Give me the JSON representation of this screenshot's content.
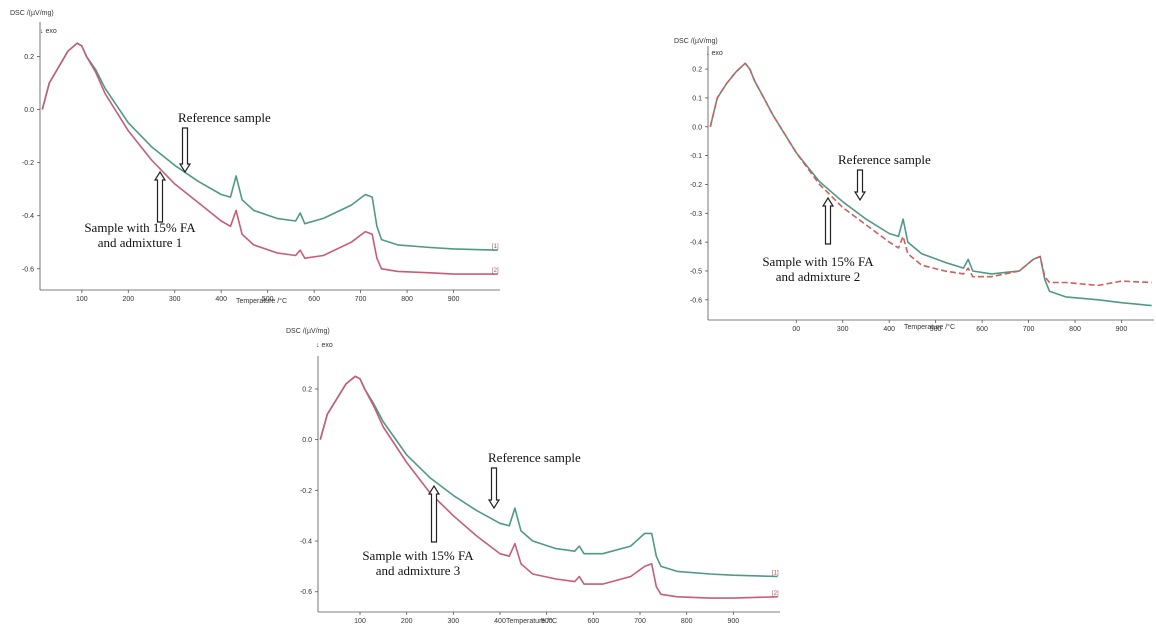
{
  "chart_data": [
    {
      "type": "line",
      "ylabel": "DSC /(µV/mg)",
      "exo_label": "↓ exo",
      "xlabel": "Temperature /°C",
      "x_ticks": [
        "100",
        "200",
        "300",
        "400",
        "500",
        "600",
        "700",
        "800",
        "900"
      ],
      "y_ticks": [
        "0.2",
        "0.0",
        "-0.2",
        "-0.4",
        "-0.6"
      ],
      "xlim": [
        10,
        1000
      ],
      "ylim": [
        -0.68,
        0.33
      ],
      "annotations": {
        "reference": "Reference sample",
        "sample_line1": "Sample with 15% FA",
        "sample_line2": "and admixture 1"
      },
      "end_labels": [
        "[1]",
        "[2]"
      ],
      "series": [
        {
          "color": "#4f9a86",
          "dash": false,
          "x": [
            15,
            30,
            50,
            70,
            90,
            100,
            110,
            130,
            150,
            200,
            250,
            300,
            350,
            400,
            420,
            432,
            445,
            470,
            520,
            560,
            570,
            580,
            620,
            680,
            710,
            725,
            735,
            745,
            780,
            850,
            900,
            995
          ],
          "y": [
            0.0,
            0.1,
            0.16,
            0.22,
            0.25,
            0.24,
            0.2,
            0.15,
            0.08,
            -0.05,
            -0.14,
            -0.21,
            -0.27,
            -0.32,
            -0.33,
            -0.25,
            -0.34,
            -0.38,
            -0.41,
            -0.42,
            -0.39,
            -0.43,
            -0.41,
            -0.36,
            -0.32,
            -0.33,
            -0.44,
            -0.49,
            -0.51,
            -0.52,
            -0.525,
            -0.53
          ]
        },
        {
          "color": "#c75d76",
          "dash": false,
          "x": [
            15,
            30,
            50,
            70,
            90,
            100,
            110,
            130,
            150,
            200,
            250,
            300,
            350,
            400,
            420,
            432,
            445,
            470,
            520,
            560,
            570,
            580,
            620,
            680,
            710,
            725,
            735,
            745,
            780,
            850,
            900,
            995
          ],
          "y": [
            0.0,
            0.1,
            0.16,
            0.22,
            0.25,
            0.24,
            0.2,
            0.14,
            0.06,
            -0.08,
            -0.19,
            -0.28,
            -0.35,
            -0.42,
            -0.44,
            -0.38,
            -0.47,
            -0.51,
            -0.54,
            -0.55,
            -0.53,
            -0.56,
            -0.55,
            -0.5,
            -0.46,
            -0.47,
            -0.56,
            -0.6,
            -0.61,
            -0.615,
            -0.62,
            -0.62
          ]
        }
      ]
    },
    {
      "type": "line",
      "ylabel": "DSC /(µV/mg)",
      "exo_label": "↓ exo",
      "xlabel": "Temperature /°C",
      "x_ticks": [
        "00",
        "300",
        "400",
        "500",
        "600",
        "700",
        "800",
        "900"
      ],
      "y_ticks": [
        "0.2",
        "0.1",
        "0.0",
        "-0.1",
        "-0.2",
        "-0.3",
        "-0.4",
        "-0.5",
        "-0.6"
      ],
      "xlim": [
        10,
        970
      ],
      "ylim": [
        -0.67,
        0.28
      ],
      "annotations": {
        "reference": "Reference sample",
        "sample_line1": "Sample with 15% FA",
        "sample_line2": "and admixture 2"
      },
      "series": [
        {
          "color": "#4f9a86",
          "dash": false,
          "x": [
            15,
            30,
            50,
            70,
            90,
            100,
            110,
            130,
            150,
            200,
            250,
            300,
            350,
            400,
            420,
            430,
            440,
            470,
            520,
            560,
            570,
            580,
            620,
            680,
            710,
            725,
            735,
            745,
            780,
            850,
            900,
            965
          ],
          "y": [
            0.0,
            0.1,
            0.15,
            0.19,
            0.22,
            0.2,
            0.16,
            0.1,
            0.04,
            -0.09,
            -0.19,
            -0.26,
            -0.32,
            -0.37,
            -0.38,
            -0.32,
            -0.4,
            -0.44,
            -0.47,
            -0.49,
            -0.46,
            -0.5,
            -0.51,
            -0.5,
            -0.46,
            -0.45,
            -0.53,
            -0.57,
            -0.59,
            -0.6,
            -0.61,
            -0.62
          ]
        },
        {
          "color": "#d05e5e",
          "dash": true,
          "x": [
            15,
            30,
            50,
            70,
            90,
            100,
            110,
            130,
            150,
            200,
            250,
            300,
            350,
            400,
            420,
            430,
            440,
            470,
            520,
            560,
            570,
            580,
            620,
            680,
            710,
            725,
            735,
            745,
            780,
            850,
            900,
            965
          ],
          "y": [
            0.0,
            0.1,
            0.15,
            0.19,
            0.22,
            0.2,
            0.16,
            0.1,
            0.04,
            -0.09,
            -0.2,
            -0.28,
            -0.34,
            -0.4,
            -0.42,
            -0.38,
            -0.44,
            -0.48,
            -0.5,
            -0.51,
            -0.49,
            -0.52,
            -0.52,
            -0.5,
            -0.46,
            -0.45,
            -0.52,
            -0.54,
            -0.54,
            -0.55,
            -0.535,
            -0.54
          ]
        }
      ]
    },
    {
      "type": "line",
      "ylabel": "DSC /(µV/mg)",
      "exo_label": "↓ exo",
      "xlabel": "Temperature /°C",
      "x_ticks": [
        "100",
        "200",
        "300",
        "400",
        "500",
        "600",
        "700",
        "800",
        "900"
      ],
      "y_ticks": [
        "0.2",
        "0.0",
        "-0.2",
        "-0.4",
        "-0.6"
      ],
      "xlim": [
        10,
        1000
      ],
      "ylim": [
        -0.68,
        0.33
      ],
      "annotations": {
        "reference": "Reference sample",
        "sample_line1": "Sample with 15% FA",
        "sample_line2": "and admixture 3"
      },
      "end_labels": [
        "[1]",
        "[2]"
      ],
      "series": [
        {
          "color": "#4f9a86",
          "dash": false,
          "x": [
            15,
            30,
            50,
            70,
            90,
            100,
            110,
            130,
            150,
            200,
            250,
            300,
            350,
            400,
            420,
            432,
            445,
            470,
            520,
            560,
            570,
            580,
            620,
            680,
            710,
            725,
            735,
            745,
            780,
            850,
            900,
            995
          ],
          "y": [
            0.0,
            0.1,
            0.16,
            0.22,
            0.25,
            0.24,
            0.2,
            0.14,
            0.07,
            -0.06,
            -0.15,
            -0.22,
            -0.28,
            -0.33,
            -0.34,
            -0.27,
            -0.36,
            -0.4,
            -0.43,
            -0.44,
            -0.42,
            -0.45,
            -0.45,
            -0.42,
            -0.37,
            -0.37,
            -0.46,
            -0.5,
            -0.52,
            -0.53,
            -0.535,
            -0.54
          ]
        },
        {
          "color": "#c75d76",
          "dash": false,
          "x": [
            15,
            30,
            50,
            70,
            90,
            100,
            110,
            130,
            150,
            200,
            250,
            300,
            350,
            400,
            420,
            432,
            445,
            470,
            520,
            560,
            570,
            580,
            620,
            680,
            710,
            725,
            735,
            745,
            780,
            850,
            900,
            995
          ],
          "y": [
            0.0,
            0.1,
            0.16,
            0.22,
            0.25,
            0.24,
            0.2,
            0.13,
            0.05,
            -0.09,
            -0.21,
            -0.3,
            -0.38,
            -0.45,
            -0.46,
            -0.41,
            -0.49,
            -0.53,
            -0.55,
            -0.56,
            -0.54,
            -0.57,
            -0.57,
            -0.54,
            -0.5,
            -0.49,
            -0.58,
            -0.61,
            -0.62,
            -0.625,
            -0.625,
            -0.62
          ]
        }
      ]
    }
  ]
}
